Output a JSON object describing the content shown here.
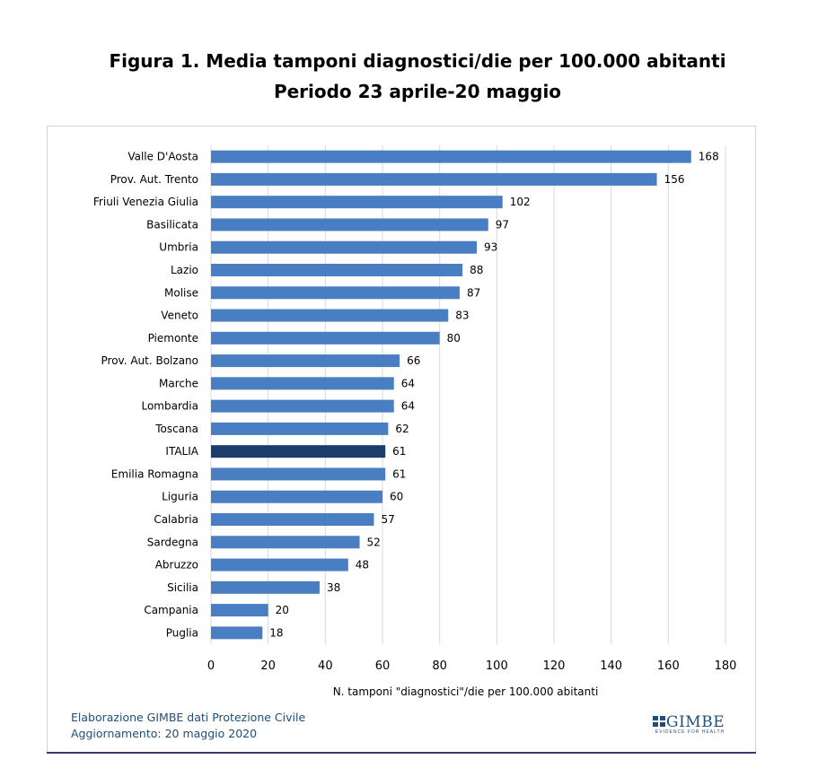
{
  "title_line1": "Figura 1. Media tamponi diagnostici/die per 100.000 abitanti",
  "title_line2": "Periodo 23 aprile-20 maggio",
  "colors": {
    "bar": "#4a7ec3",
    "highlight": "#1c3c6b",
    "grid": "#d9d9d9"
  },
  "chart_data": {
    "type": "bar",
    "orientation": "horizontal",
    "categories": [
      "Valle D'Aosta",
      "Prov. Aut. Trento",
      "Friuli Venezia Giulia",
      "Basilicata",
      "Umbria",
      "Lazio",
      "Molise",
      "Veneto",
      "Piemonte",
      "Prov. Aut. Bolzano",
      "Marche",
      "Lombardia",
      "Toscana",
      "ITALIA",
      "Emilia Romagna",
      "Liguria",
      "Calabria",
      "Sardegna",
      "Abruzzo",
      "Sicilia",
      "Campania",
      "Puglia"
    ],
    "values": [
      168,
      156,
      102,
      97,
      93,
      88,
      87,
      83,
      80,
      66,
      64,
      64,
      62,
      61,
      61,
      60,
      57,
      52,
      48,
      38,
      20,
      18
    ],
    "highlight": "ITALIA",
    "xlabel": "N. tamponi \"diagnostici\"/die per 100.000 abitanti",
    "xlim": [
      0,
      180
    ],
    "xticks": [
      0,
      20,
      40,
      60,
      80,
      100,
      120,
      140,
      160,
      180
    ],
    "grid": true,
    "data_labels": true
  },
  "footer": {
    "line1": "Elaborazione GIMBE dati Protezione Civile",
    "line2": "Aggiornamento: 20 maggio 2020"
  },
  "logo": {
    "icon": "gimbe-logo-icon",
    "text": "GIMBE",
    "tagline": "EVIDENCE FOR HEALTH"
  }
}
